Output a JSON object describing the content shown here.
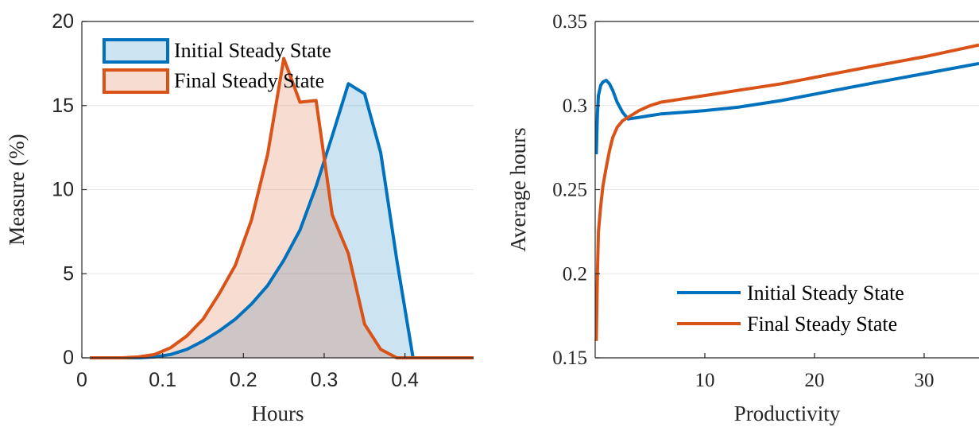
{
  "chart_data": [
    {
      "type": "area",
      "xlabel": "Hours",
      "ylabel": "Measure (%)",
      "xlim": [
        0,
        0.485
      ],
      "ylim": [
        0,
        20
      ],
      "xticks": [
        "0",
        "0.1",
        "0.2",
        "0.3",
        "0.4"
      ],
      "yticks": [
        "0",
        "5",
        "10",
        "15",
        "20"
      ],
      "grid": "horizontal",
      "legend_placement": "top-left",
      "series": [
        {
          "name": "Initial Steady State",
          "color": "#0072BD",
          "fill": "#0072BD",
          "x": [
            0.01,
            0.03,
            0.05,
            0.07,
            0.09,
            0.11,
            0.13,
            0.15,
            0.17,
            0.19,
            0.21,
            0.23,
            0.25,
            0.27,
            0.29,
            0.31,
            0.33,
            0.35,
            0.37,
            0.39,
            0.41,
            0.43,
            0.45,
            0.47,
            0.485
          ],
          "values": [
            0,
            0,
            0,
            0,
            0.05,
            0.2,
            0.5,
            1.0,
            1.6,
            2.3,
            3.2,
            4.3,
            5.8,
            7.6,
            10.2,
            13.2,
            16.3,
            15.7,
            12.2,
            5.8,
            0,
            0,
            0,
            0,
            0
          ]
        },
        {
          "name": "Final Steady State",
          "color": "#D95319",
          "fill": "#D95319",
          "x": [
            0.01,
            0.03,
            0.05,
            0.07,
            0.09,
            0.11,
            0.13,
            0.15,
            0.17,
            0.19,
            0.21,
            0.23,
            0.25,
            0.27,
            0.29,
            0.31,
            0.33,
            0.35,
            0.37,
            0.39,
            0.41,
            0.43,
            0.45,
            0.47,
            0.485
          ],
          "values": [
            0,
            0,
            0,
            0.05,
            0.2,
            0.6,
            1.3,
            2.3,
            3.8,
            5.5,
            8.2,
            12.1,
            17.8,
            15.2,
            15.3,
            8.5,
            6.2,
            2.0,
            0.5,
            0,
            0,
            0,
            0,
            0,
            0
          ]
        }
      ]
    },
    {
      "type": "line",
      "xlabel": "Productivity",
      "ylabel": "Average hours",
      "xlim": [
        0,
        35
      ],
      "ylim": [
        0.15,
        0.35
      ],
      "xticks": [
        "10",
        "20",
        "30"
      ],
      "yticks": [
        "0.15",
        "0.2",
        "0.25",
        "0.3",
        "0.35"
      ],
      "grid": "horizontal",
      "legend_placement": "bottom-right",
      "series": [
        {
          "name": "Initial Steady State",
          "color": "#0072BD",
          "x": [
            0.1,
            0.2,
            0.3,
            0.5,
            0.7,
            1.0,
            1.3,
            1.6,
            2.0,
            2.5,
            3.0,
            4.0,
            5.0,
            6.0,
            8.0,
            10,
            13,
            17,
            21,
            25,
            30,
            35
          ],
          "values": [
            0.271,
            0.295,
            0.306,
            0.312,
            0.314,
            0.315,
            0.313,
            0.309,
            0.302,
            0.296,
            0.292,
            0.293,
            0.294,
            0.295,
            0.296,
            0.297,
            0.299,
            0.303,
            0.308,
            0.313,
            0.319,
            0.325
          ]
        },
        {
          "name": "Final Steady State",
          "color": "#D95319",
          "x": [
            0.1,
            0.2,
            0.3,
            0.5,
            0.7,
            1.0,
            1.3,
            1.6,
            2.0,
            2.5,
            3.0,
            4.0,
            5.0,
            6.0,
            8.0,
            10,
            13,
            17,
            21,
            25,
            30,
            35
          ],
          "values": [
            0.16,
            0.2,
            0.225,
            0.24,
            0.252,
            0.263,
            0.273,
            0.281,
            0.287,
            0.291,
            0.293,
            0.297,
            0.3,
            0.302,
            0.304,
            0.306,
            0.309,
            0.313,
            0.318,
            0.323,
            0.329,
            0.336
          ]
        }
      ]
    }
  ]
}
